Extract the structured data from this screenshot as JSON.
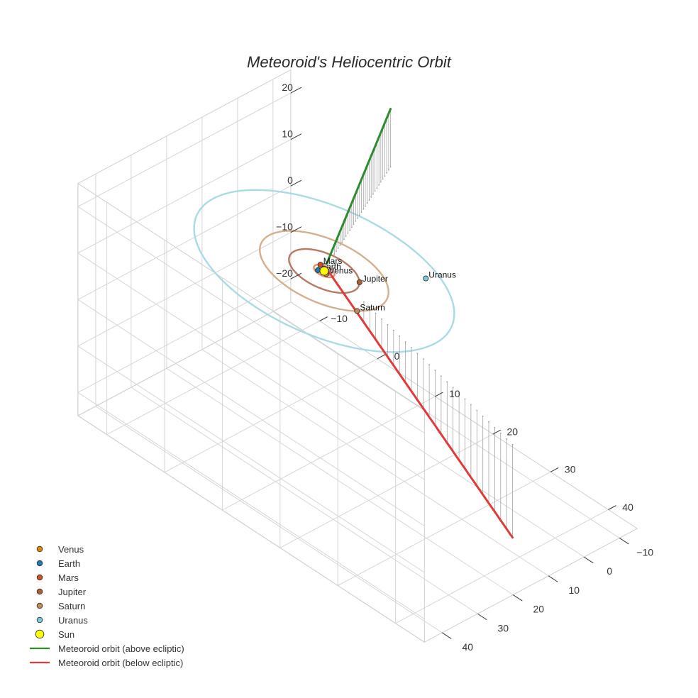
{
  "chart_data": {
    "type": "3d-scatter-line",
    "title": "Meteoroid's Heliocentric Orbit",
    "axes": {
      "x": {
        "ticks": [
          -10,
          0,
          10,
          20,
          30,
          40
        ],
        "labels": [
          "−10",
          "0",
          "10",
          "20",
          "30",
          "40"
        ],
        "range": [
          -15,
          45
        ]
      },
      "y": {
        "ticks": [
          -10,
          0,
          10,
          20,
          30,
          40
        ],
        "labels": [
          "−10",
          "0",
          "10",
          "20",
          "30",
          "40"
        ],
        "range": [
          -15,
          45
        ]
      },
      "z": {
        "ticks": [
          -20,
          -10,
          0,
          10,
          20
        ],
        "labels": [
          "−20",
          "−10",
          "0",
          "10",
          "20"
        ],
        "range": [
          -25,
          25
        ]
      }
    },
    "bodies": [
      {
        "name": "Venus",
        "label": "Venus",
        "color": "#d98a00",
        "orbit_radius": 0.72,
        "pos": [
          0.6,
          0.4,
          0
        ]
      },
      {
        "name": "Earth",
        "label": "Earth",
        "color": "#1f77b4",
        "orbit_radius": 1.0,
        "pos": [
          -0.6,
          0.8,
          0
        ]
      },
      {
        "name": "Mars",
        "label": "Mars",
        "color": "#d1501f",
        "orbit_radius": 1.52,
        "pos": [
          -1.2,
          -0.9,
          0
        ]
      },
      {
        "name": "Jupiter",
        "label": "Jupiter",
        "color": "#b06030",
        "orbit_radius": 5.2,
        "pos": [
          4.4,
          -2.8,
          0
        ]
      },
      {
        "name": "Saturn",
        "label": "Saturn",
        "color": "#c08a5a",
        "orbit_radius": 9.5,
        "pos": [
          8.4,
          4.4,
          0
        ]
      },
      {
        "name": "Uranus",
        "label": "Uranus",
        "color": "#7fc8da",
        "orbit_radius": 19.2,
        "pos": [
          9.0,
          -14.0,
          0
        ]
      },
      {
        "name": "Sun",
        "label": "",
        "color": "#ffff00",
        "orbit_radius": 0,
        "pos": [
          0,
          0,
          0
        ]
      }
    ],
    "orbit_colors": {
      "Venus": "#e5b070",
      "Earth": "#8fc0e0",
      "Mars": "#e09070",
      "Jupiter": "#b87a62",
      "Saturn": "#d4b08c",
      "Uranus": "#a9dbe6"
    },
    "meteoroid": {
      "above": {
        "name": "Meteoroid orbit (above ecliptic)",
        "color": "#2e8b2e",
        "start": [
          -0.5,
          -1.5,
          0.5
        ],
        "end": [
          -10,
          -35,
          12.5
        ]
      },
      "below": {
        "name": "Meteoroid orbit (below ecliptic)",
        "color": "#e03a3a",
        "start": [
          -0.5,
          -1.5,
          -0.5
        ],
        "end": [
          40,
          12,
          -20
        ]
      }
    },
    "legend": {
      "position": "bottom-left",
      "items": [
        {
          "label": "Venus",
          "kind": "marker",
          "color": "#d98a00"
        },
        {
          "label": "Earth",
          "kind": "marker",
          "color": "#1f77b4"
        },
        {
          "label": "Mars",
          "kind": "marker",
          "color": "#d1501f"
        },
        {
          "label": "Jupiter",
          "kind": "marker",
          "color": "#b06030"
        },
        {
          "label": "Saturn",
          "kind": "marker",
          "color": "#c08a5a"
        },
        {
          "label": "Uranus",
          "kind": "marker",
          "color": "#7fc8da"
        },
        {
          "label": "Sun",
          "kind": "marker-large",
          "color": "#ffff00"
        },
        {
          "label": "Meteoroid orbit (above ecliptic)",
          "kind": "line",
          "color": "#2e8b2e"
        },
        {
          "label": "Meteoroid orbit (below ecliptic)",
          "kind": "line",
          "color": "#e03a3a"
        }
      ]
    }
  }
}
